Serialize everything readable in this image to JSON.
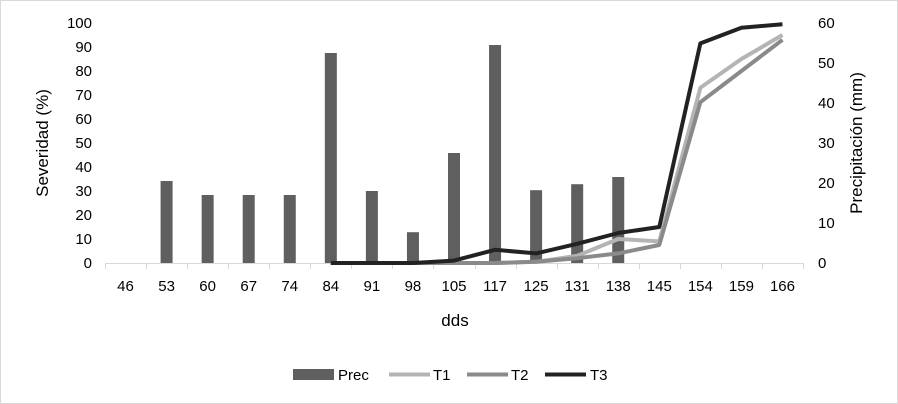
{
  "chart_data": {
    "type": "bar+line",
    "categories": [
      "46",
      "53",
      "60",
      "67",
      "74",
      "84",
      "91",
      "98",
      "105",
      "117",
      "125",
      "131",
      "138",
      "145",
      "154",
      "159",
      "166"
    ],
    "xlabel": "dds",
    "ylabel": "Severidad (%)",
    "y2label": "Precipitación (mm)",
    "ylim": [
      0,
      100
    ],
    "yticks": [
      0,
      10,
      20,
      30,
      40,
      50,
      60,
      70,
      80,
      90,
      100
    ],
    "y2lim": [
      0,
      60
    ],
    "y2ticks": [
      0,
      10,
      20,
      30,
      40,
      50,
      60
    ],
    "grid": false,
    "legend_position": "bottom",
    "bar_series": {
      "name": "Prec",
      "axis": "secondary",
      "color": "#5f5f5f",
      "values": [
        null,
        20.5,
        17,
        17,
        17,
        52.5,
        18,
        7.7,
        27.5,
        54.5,
        18.2,
        19.7,
        21.5,
        null,
        null,
        null,
        null
      ]
    },
    "line_series": [
      {
        "name": "T1",
        "axis": "primary",
        "color": "#b4b4b4",
        "values": [
          null,
          null,
          null,
          null,
          null,
          0,
          0,
          0,
          0,
          0,
          0.5,
          3,
          10,
          9,
          73,
          85,
          95
        ]
      },
      {
        "name": "T2",
        "axis": "primary",
        "color": "#8a8a8a",
        "values": [
          null,
          null,
          null,
          null,
          null,
          0,
          0,
          0,
          0,
          0,
          0.5,
          2,
          4,
          7.5,
          67,
          80,
          93
        ]
      },
      {
        "name": "T3",
        "axis": "primary",
        "color": "#222222",
        "values": [
          null,
          null,
          null,
          null,
          null,
          0,
          0,
          0,
          1,
          5.5,
          4,
          8,
          12.5,
          15,
          91.5,
          98,
          99.5
        ]
      }
    ]
  }
}
